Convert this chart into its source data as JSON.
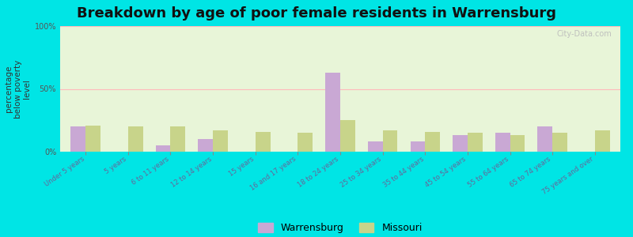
{
  "title": "Breakdown by age of poor female residents in Warrensburg",
  "ylabel": "percentage\nbelow poverty\nlevel",
  "categories": [
    "Under 5 years",
    "5 years",
    "6 to 11 years",
    "12 to 14 years",
    "15 years",
    "16 and 17 years",
    "18 to 24 years",
    "25 to 34 years",
    "35 to 44 years",
    "45 to 54 years",
    "55 to 64 years",
    "65 to 74 years",
    "75 years and over"
  ],
  "warrensburg": [
    20,
    0,
    5,
    10,
    0,
    0,
    63,
    8,
    8,
    13,
    15,
    20,
    0
  ],
  "missouri": [
    21,
    20,
    20,
    17,
    16,
    15,
    25,
    17,
    16,
    15,
    13,
    15,
    17
  ],
  "warrensburg_color": "#c9a8d4",
  "missouri_color": "#c8d48a",
  "bg_color": "#00e5e5",
  "plot_bg_color": "#e8f5d8",
  "ylim": [
    0,
    100
  ],
  "ytick_labels": [
    "0%",
    "50%",
    "100%"
  ],
  "bar_width": 0.35,
  "title_fontsize": 13,
  "axis_label_fontsize": 7.5,
  "tick_fontsize": 7,
  "legend_fontsize": 9,
  "watermark_text": "City-Data.com",
  "grid_color": "#ffbbbb",
  "grid_linewidth": 0.8
}
